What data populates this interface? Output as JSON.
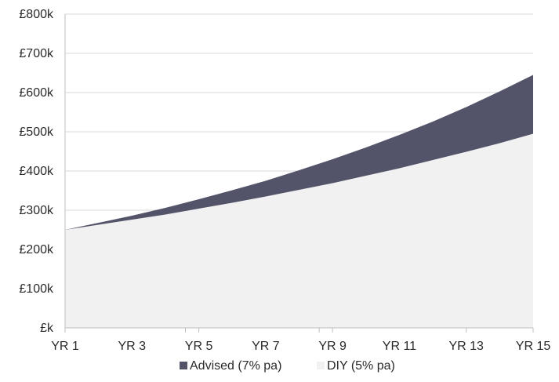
{
  "chart_data": {
    "type": "area",
    "title": "",
    "xlabel": "",
    "ylabel": "",
    "x": [
      1,
      2,
      3,
      4,
      5,
      6,
      7,
      8,
      9,
      10,
      11,
      12,
      13,
      14,
      15
    ],
    "x_tick_labels": [
      "YR 1",
      "YR 3",
      "YR 5",
      "YR 7",
      "YR 9",
      "YR 11",
      "YR 13",
      "YR 15"
    ],
    "x_tick_values": [
      1,
      3,
      5,
      7,
      9,
      11,
      13,
      15
    ],
    "ylim": [
      0,
      800
    ],
    "y_unit": "£k",
    "y_tick_values": [
      0,
      100,
      200,
      300,
      400,
      500,
      600,
      700,
      800
    ],
    "y_tick_labels": [
      "£k",
      "£100k",
      "£200k",
      "£300k",
      "£400k",
      "£500k",
      "£600k",
      "£700k",
      "£800k"
    ],
    "grid": true,
    "legend_position": "bottom",
    "series": [
      {
        "name": "Advised (7% pa)",
        "color": "#53536a",
        "values": [
          250,
          268,
          286,
          306,
          328,
          351,
          375,
          402,
          430,
          460,
          492,
          526,
          563,
          603,
          645
        ]
      },
      {
        "name": "DIY (5% pa)",
        "color": "#f1f1f1",
        "values": [
          250,
          263,
          276,
          289,
          304,
          319,
          335,
          352,
          369,
          388,
          407,
          428,
          449,
          471,
          495
        ]
      }
    ]
  }
}
